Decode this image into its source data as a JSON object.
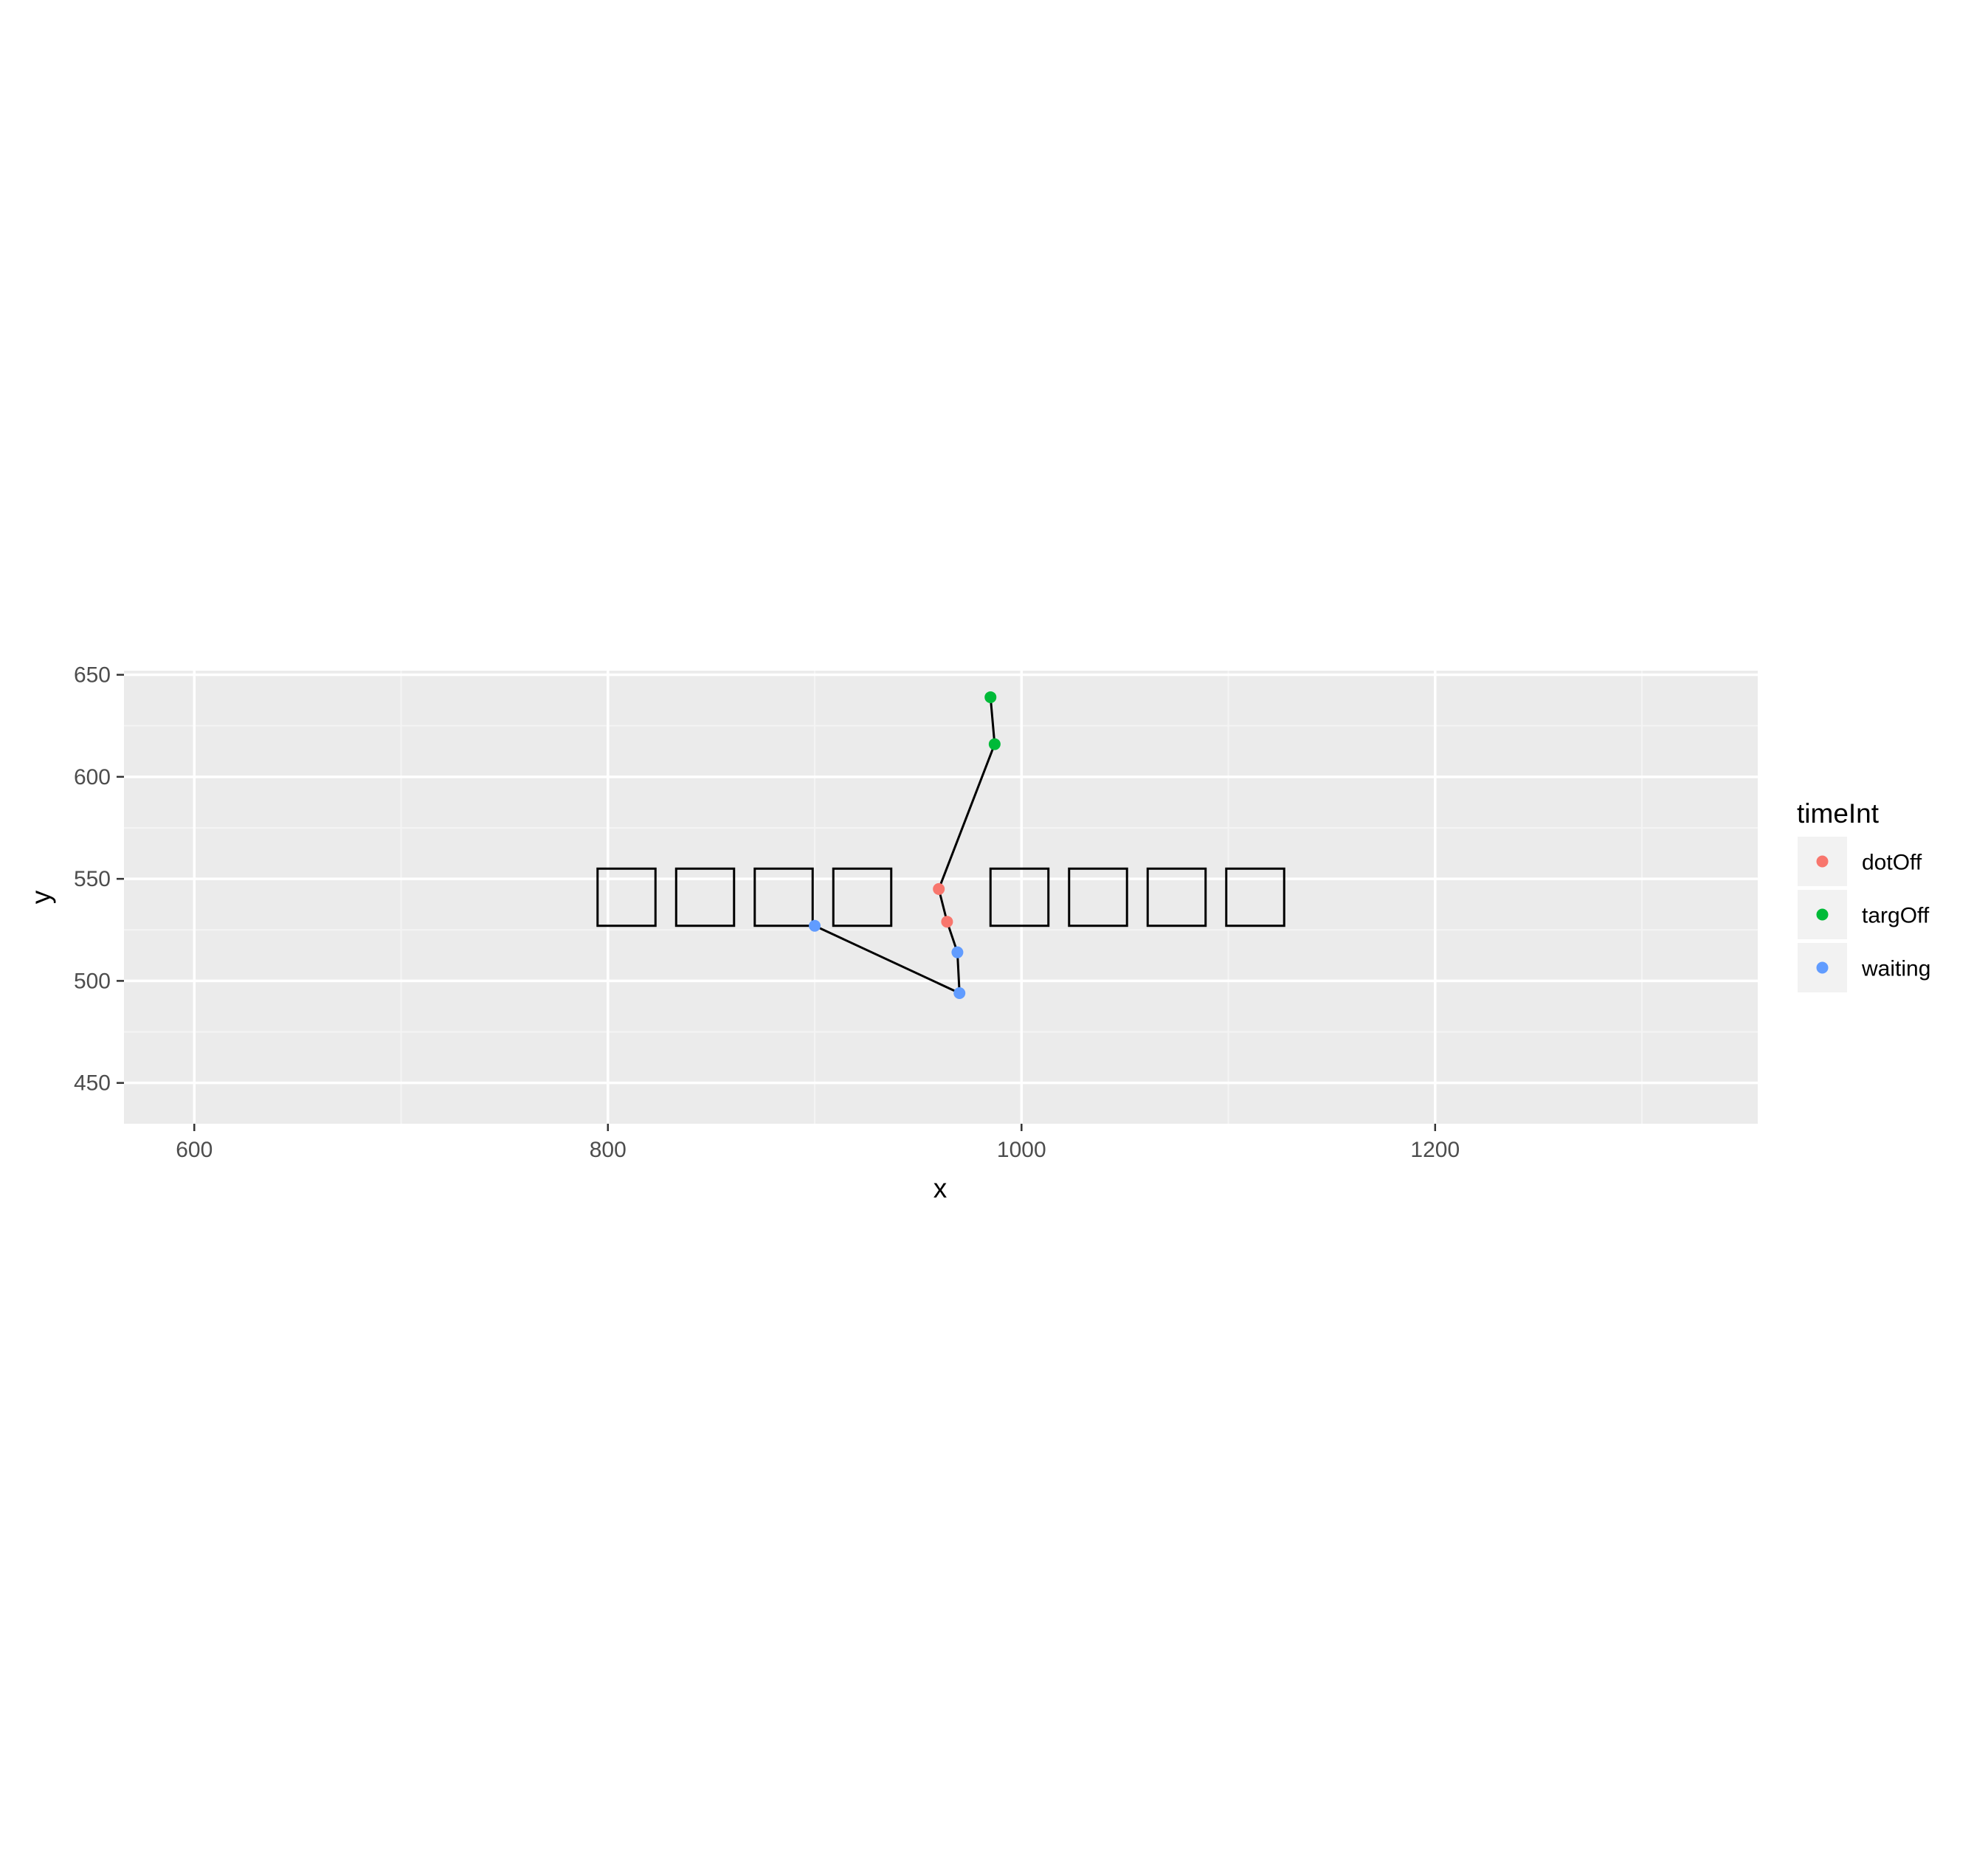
{
  "chart_data": {
    "type": "scatter",
    "title": "",
    "xlabel": "x",
    "ylabel": "y",
    "xlim": [
      566,
      1356
    ],
    "ylim": [
      430,
      652
    ],
    "x_ticks": [
      600,
      800,
      1000,
      1200
    ],
    "y_ticks": [
      450,
      500,
      550,
      600,
      650
    ],
    "x_tick_labels": [
      "600",
      "800",
      "1000",
      "1200"
    ],
    "y_tick_labels": [
      "450",
      "500",
      "550",
      "600",
      "650"
    ],
    "grid": true,
    "legend": {
      "title": "timeInt",
      "placement": "right",
      "entries": [
        {
          "name": "dotOff",
          "color": "#F8766D"
        },
        {
          "name": "targOff",
          "color": "#00BA38"
        },
        {
          "name": "waiting",
          "color": "#619CFF"
        }
      ]
    },
    "series": [
      {
        "name": "dotOff",
        "color": "#F8766D",
        "points": [
          [
            960,
            545
          ],
          [
            964,
            529
          ]
        ]
      },
      {
        "name": "targOff",
        "color": "#00BA38",
        "points": [
          [
            985,
            639
          ],
          [
            987,
            616
          ]
        ]
      },
      {
        "name": "waiting",
        "color": "#619CFF",
        "points": [
          [
            900,
            527
          ],
          [
            969,
            514
          ],
          [
            970,
            494
          ]
        ]
      }
    ],
    "path": {
      "color": "#000000",
      "points": [
        [
          900,
          527
        ],
        [
          970,
          494
        ],
        [
          969,
          514
        ],
        [
          964,
          529
        ],
        [
          960,
          545
        ],
        [
          987,
          616
        ],
        [
          985,
          639
        ]
      ]
    },
    "rectangles": {
      "color": "#000000",
      "y_range": [
        527,
        555
      ],
      "x_ranges": [
        [
          795,
          823
        ],
        [
          833,
          861
        ],
        [
          871,
          899
        ],
        [
          909,
          937
        ],
        [
          985,
          1013
        ],
        [
          1023,
          1051
        ],
        [
          1061,
          1089
        ],
        [
          1099,
          1127
        ]
      ]
    }
  },
  "colors": {
    "panel_background": "#EBEBEB",
    "grid_major": "#FFFFFF",
    "grid_minor": "#F4F4F4",
    "legend_key_background": "#F2F2F2"
  }
}
